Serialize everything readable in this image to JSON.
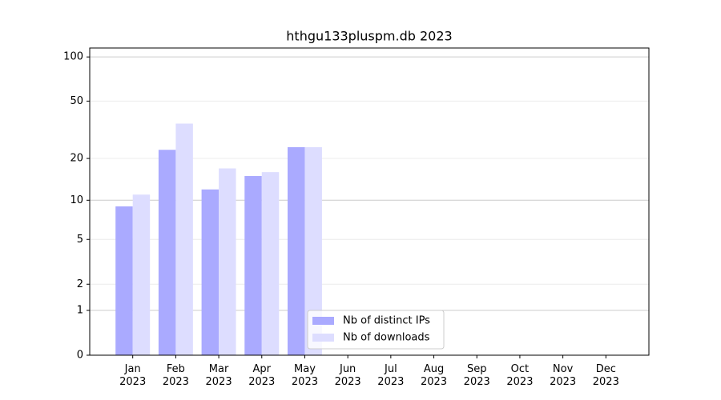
{
  "chart_data": {
    "type": "bar",
    "title": "hthgu133pluspm.db 2023",
    "categories": [
      "Jan 2023",
      "Feb 2023",
      "Mar 2023",
      "Apr 2023",
      "May 2023",
      "Jun 2023",
      "Jul 2023",
      "Aug 2023",
      "Sep 2023",
      "Oct 2023",
      "Nov 2023",
      "Dec 2023"
    ],
    "series": [
      {
        "name": "Nb of distinct IPs",
        "color": "#aaaaff",
        "values": [
          9,
          23,
          12,
          15,
          24,
          null,
          null,
          null,
          null,
          null,
          null,
          null
        ]
      },
      {
        "name": "Nb of downloads",
        "color": "#ddddff",
        "values": [
          11,
          35,
          17,
          16,
          24,
          null,
          null,
          null,
          null,
          null,
          null,
          null
        ]
      }
    ],
    "yscale": "log1p",
    "ylim": [
      0,
      115
    ],
    "yticks": [
      0,
      1,
      2,
      5,
      10,
      20,
      50,
      100
    ],
    "grid": true,
    "legend": "lower center"
  }
}
